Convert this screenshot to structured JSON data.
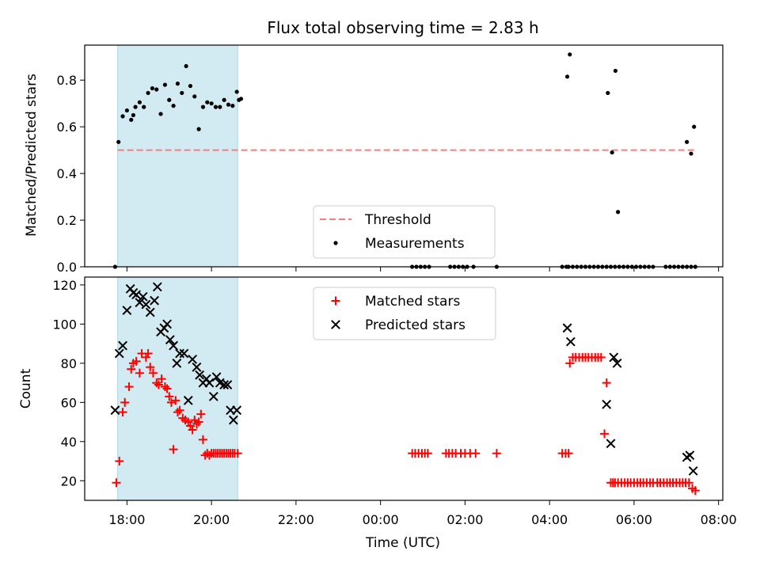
{
  "figure": {
    "title": "Flux total observing time = 2.83 h",
    "xlabel": "Time (UTC)"
  },
  "colors": {
    "shade": "#add8e6",
    "threshold": "#f08080",
    "measurement": "#000000",
    "matched": "#ff0000",
    "predicted": "#000000"
  },
  "chart_data": [
    {
      "type": "scatter",
      "panel": "top",
      "ylabel": "Matched/Predicted stars",
      "ylim": [
        0,
        0.95
      ],
      "yticks": [
        0.0,
        0.2,
        0.4,
        0.6,
        0.8
      ],
      "ytick_labels": [
        "0.0",
        "0.2",
        "0.4",
        "0.6",
        "0.8"
      ],
      "xlim_hours": [
        17.0,
        32.1
      ],
      "shaded_span_hours": [
        17.78,
        20.62
      ],
      "legend_position": "lower center",
      "threshold": {
        "name": "Threshold",
        "value": 0.5,
        "x_range_hours": [
          17.78,
          31.45
        ],
        "style": "dashed"
      },
      "series": [
        {
          "name": "Measurements",
          "marker": "dot",
          "x_hours": [
            17.72,
            17.8,
            17.9,
            18.0,
            18.1,
            18.15,
            18.2,
            18.3,
            18.4,
            18.5,
            18.6,
            18.7,
            18.8,
            18.9,
            19.0,
            19.1,
            19.2,
            19.3,
            19.4,
            19.5,
            19.6,
            19.7,
            19.8,
            19.9,
            20.0,
            20.1,
            20.2,
            20.3,
            20.4,
            20.5,
            20.6,
            20.65,
            20.7,
            24.75,
            24.85,
            24.95,
            25.05,
            25.15,
            25.65,
            25.75,
            25.85,
            25.95,
            26.05,
            26.2,
            26.75,
            30.75,
            30.85,
            30.95,
            31.05,
            31.15,
            31.25,
            31.35,
            31.45,
            28.3,
            28.4,
            28.45,
            28.55,
            28.65,
            28.75,
            28.85,
            28.95,
            29.05,
            29.15,
            29.25,
            29.35,
            29.45,
            29.55,
            29.65,
            29.75,
            29.85,
            29.95,
            30.05,
            30.15,
            30.25,
            30.35,
            30.45,
            28.42,
            28.48,
            29.38,
            29.48,
            29.56,
            29.62,
            31.25,
            31.35,
            31.42
          ],
          "y": [
            0.0,
            0.535,
            0.645,
            0.67,
            0.63,
            0.65,
            0.685,
            0.705,
            0.685,
            0.745,
            0.765,
            0.76,
            0.655,
            0.78,
            0.715,
            0.69,
            0.785,
            0.745,
            0.86,
            0.775,
            0.73,
            0.59,
            0.685,
            0.705,
            0.7,
            0.685,
            0.685,
            0.715,
            0.695,
            0.69,
            0.75,
            0.715,
            0.72,
            0.0,
            0.0,
            0.0,
            0.0,
            0.0,
            0.0,
            0.0,
            0.0,
            0.0,
            0.0,
            0.0,
            0.0,
            0.0,
            0.0,
            0.0,
            0.0,
            0.0,
            0.0,
            0.0,
            0.0,
            0.0,
            0.0,
            0.0,
            0.0,
            0.0,
            0.0,
            0.0,
            0.0,
            0.0,
            0.0,
            0.0,
            0.0,
            0.0,
            0.0,
            0.0,
            0.0,
            0.0,
            0.0,
            0.0,
            0.0,
            0.0,
            0.0,
            0.0,
            0.815,
            0.91,
            0.745,
            0.49,
            0.84,
            0.235,
            0.535,
            0.485,
            0.6
          ]
        }
      ]
    },
    {
      "type": "scatter",
      "panel": "bottom",
      "ylabel": "Count",
      "ylim": [
        10,
        124
      ],
      "yticks": [
        20,
        40,
        60,
        80,
        100,
        120
      ],
      "xlim_hours": [
        17.0,
        32.1
      ],
      "xticks_hours": [
        18,
        20,
        22,
        24,
        26,
        28,
        30,
        32
      ],
      "xtick_labels": [
        "18:00",
        "20:00",
        "22:00",
        "00:00",
        "02:00",
        "04:00",
        "06:00",
        "08:00"
      ],
      "shaded_span_hours": [
        17.78,
        20.62
      ],
      "legend_position": "upper center",
      "series": [
        {
          "name": "Matched stars",
          "marker": "plus",
          "x_hours": [
            17.75,
            17.82,
            17.9,
            17.95,
            18.05,
            18.1,
            18.15,
            18.22,
            18.3,
            18.35,
            18.45,
            18.5,
            18.55,
            18.62,
            18.7,
            18.75,
            18.82,
            18.9,
            18.95,
            19.0,
            19.05,
            19.1,
            19.15,
            19.2,
            19.25,
            19.32,
            19.38,
            19.45,
            19.5,
            19.55,
            19.6,
            19.65,
            19.7,
            19.75,
            19.8,
            19.85,
            19.9,
            19.95,
            20.0,
            20.05,
            20.1,
            20.15,
            20.2,
            20.25,
            20.3,
            20.35,
            20.4,
            20.45,
            20.5,
            20.55,
            20.62,
            24.75,
            24.82,
            24.9,
            24.98,
            25.05,
            25.12,
            25.55,
            25.62,
            25.7,
            25.78,
            25.9,
            26.0,
            26.12,
            26.25,
            26.75,
            28.3,
            28.38,
            28.45,
            28.48,
            28.55,
            28.62,
            28.7,
            28.78,
            28.85,
            28.92,
            29.0,
            29.08,
            29.15,
            29.22,
            29.3,
            29.35,
            29.45,
            29.5,
            29.55,
            29.62,
            29.7,
            29.78,
            29.85,
            29.92,
            30.0,
            30.08,
            30.15,
            30.22,
            30.3,
            30.38,
            30.45,
            30.55,
            30.62,
            30.7,
            30.78,
            30.85,
            30.92,
            31.0,
            31.08,
            31.15,
            31.22,
            31.3,
            31.38,
            31.45
          ],
          "y": [
            19,
            30,
            55,
            60,
            68,
            77,
            80,
            81,
            75,
            85,
            83,
            85,
            78,
            75,
            70,
            69,
            72,
            68,
            67,
            63,
            60,
            36,
            61,
            55,
            56,
            52,
            51,
            50,
            48,
            46,
            51,
            49,
            50,
            54,
            41,
            33,
            34,
            33,
            34,
            34,
            34,
            34,
            34,
            34,
            34,
            34,
            34,
            34,
            34,
            34,
            34,
            34,
            34,
            34,
            34,
            34,
            34,
            34,
            34,
            34,
            34,
            34,
            34,
            34,
            34,
            34,
            34,
            34,
            34,
            80,
            83,
            83,
            83,
            83,
            83,
            83,
            83,
            83,
            83,
            83,
            44,
            70,
            19,
            19,
            19,
            19,
            19,
            19,
            19,
            19,
            19,
            19,
            19,
            19,
            19,
            19,
            19,
            19,
            19,
            19,
            19,
            19,
            19,
            19,
            19,
            19,
            19,
            19,
            16,
            15
          ]
        },
        {
          "name": "Predicted stars",
          "marker": "x",
          "x_hours": [
            17.72,
            17.82,
            17.9,
            18.0,
            18.08,
            18.15,
            18.22,
            18.3,
            18.38,
            18.45,
            18.55,
            18.65,
            18.72,
            18.8,
            18.88,
            18.95,
            19.02,
            19.1,
            19.18,
            19.25,
            19.35,
            19.45,
            19.55,
            19.65,
            19.72,
            19.8,
            19.88,
            19.95,
            20.05,
            20.12,
            20.2,
            20.3,
            20.38,
            20.45,
            20.52,
            20.6,
            28.42,
            28.5,
            29.35,
            29.45,
            29.52,
            29.6,
            31.25,
            31.32,
            31.4
          ],
          "y": [
            56,
            85,
            89,
            107,
            118,
            116,
            115,
            111,
            114,
            110,
            106,
            112,
            119,
            96,
            98,
            100,
            92,
            89,
            80,
            85,
            85,
            61,
            82,
            78,
            74,
            70,
            72,
            70,
            63,
            73,
            70,
            69,
            69,
            56,
            51,
            56,
            98,
            91,
            59,
            39,
            83,
            80,
            32,
            33,
            25
          ]
        }
      ]
    }
  ]
}
